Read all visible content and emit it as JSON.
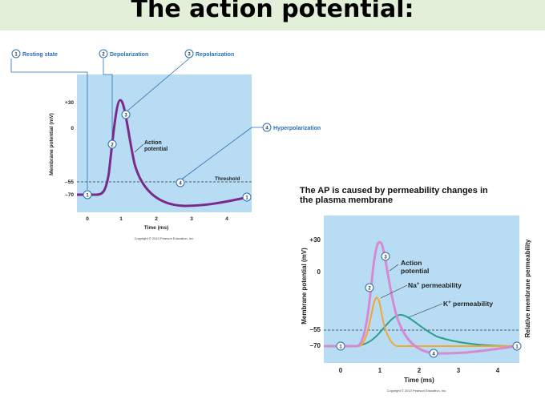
{
  "slide_title": "The action potential:",
  "left_figure": {
    "steps": {
      "s1": {
        "num": "1",
        "label": "Resting state"
      },
      "s2": {
        "num": "2",
        "label": "Depolarization"
      },
      "s3": {
        "num": "3",
        "label": "Repolarization"
      },
      "s4": {
        "num": "4",
        "label": "Hyperpolarization"
      }
    },
    "y_axis_label": "Membrane potential (mV)",
    "y_ticks": [
      "+30",
      "0",
      "–55",
      "–70"
    ],
    "x_ticks": [
      "0",
      "1",
      "2",
      "3",
      "4"
    ],
    "x_axis_label": "Time (ms)",
    "curve_label": "Action\npotential",
    "threshold_label": "Threshold",
    "copyright": "Copyright © 2010 Pearson Education, Inc.",
    "colors": {
      "plot_bg": "#b7dcf4",
      "curve": "#7b2a8c",
      "marker": "#2a6fb0"
    }
  },
  "right_figure": {
    "heading_line1": "The AP is caused by permeability changes in",
    "heading_line2": "the plasma membrane",
    "y_axis_label": "Membrane potential (mV)",
    "y_axis_label_right": "Relative membrane permeability",
    "y_ticks": [
      "+30",
      "0",
      "–55",
      "–70"
    ],
    "x_ticks": [
      "0",
      "1",
      "2",
      "3",
      "4"
    ],
    "x_axis_label": "Time (ms)",
    "curve_label": "Action\npotential",
    "na_label": "Na",
    "na_sup": "+",
    "na_suffix": " permeability",
    "k_label": "K",
    "k_sup": "+",
    "k_suffix": " permeability",
    "copyright": "Copyright © 2010 Pearson Education, Inc.",
    "colors": {
      "plot_bg": "#b7dcf4",
      "ap": "#d68ad3",
      "na": "#f0a830",
      "k": "#2aa08a"
    }
  }
}
